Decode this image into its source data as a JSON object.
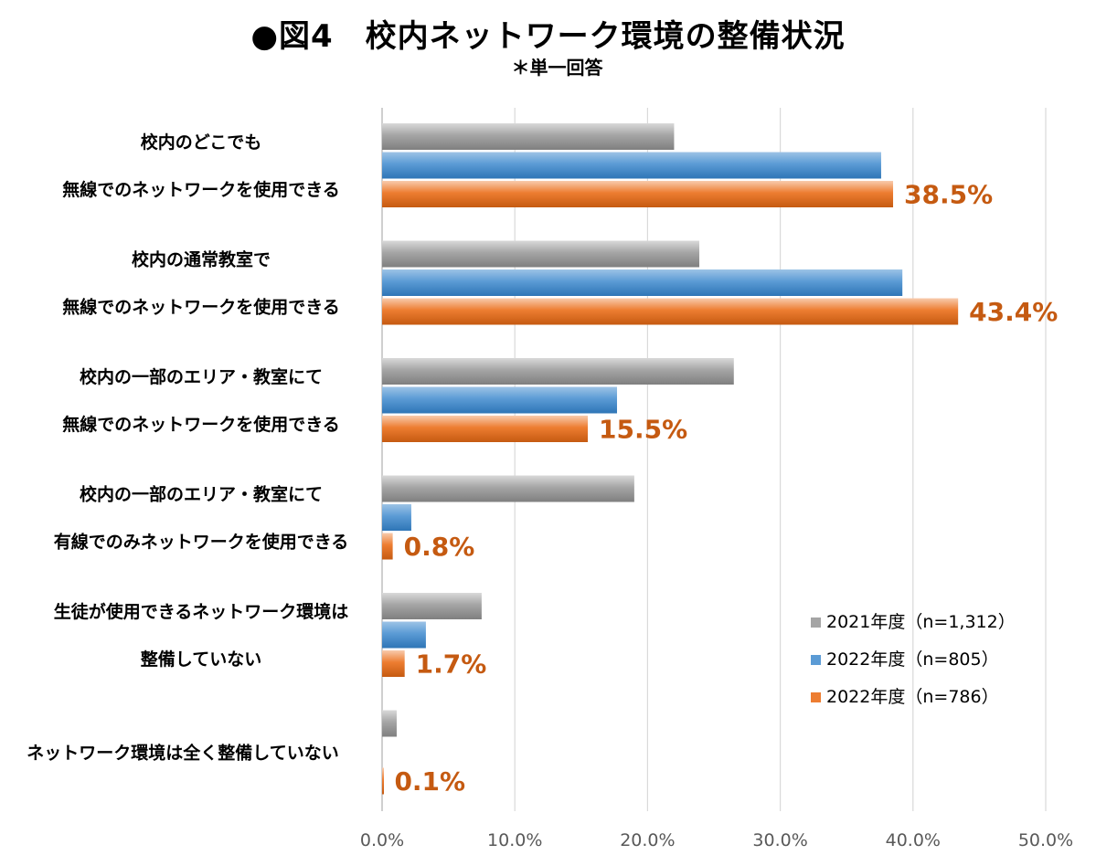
{
  "title": "●図4　校内ネットワーク環境の整備状況",
  "subtitle": "＊単一回答",
  "chart_data": {
    "type": "bar",
    "orientation": "horizontal",
    "categories": [
      [
        "校内のどこでも",
        "無線でのネットワークを使用できる"
      ],
      [
        "校内の通常教室で",
        "無線でのネットワークを使用できる"
      ],
      [
        "校内の一部のエリア・教室にて",
        "無線でのネットワークを使用できる"
      ],
      [
        "校内の一部のエリア・教室にて",
        "有線でのみネットワークを使用できる"
      ],
      [
        "生徒が使用できるネットワーク環境は",
        "整備していない"
      ],
      [
        "ネットワーク環境は全く整備していない"
      ]
    ],
    "series": [
      {
        "name": "2021年度（n=1,312）",
        "color": "#A5A5A5",
        "values": [
          22.0,
          23.9,
          26.5,
          19.0,
          7.5,
          1.1
        ]
      },
      {
        "name": "2022年度（n=805）",
        "color": "#5B9BD5",
        "values": [
          37.6,
          39.2,
          17.7,
          2.2,
          3.3,
          0.0
        ]
      },
      {
        "name": "2022年度（n=786）",
        "color": "#ED7D31",
        "values": [
          38.5,
          43.4,
          15.5,
          0.8,
          1.7,
          0.1
        ]
      }
    ],
    "data_labels": [
      "38.5%",
      "43.4%",
      "15.5%",
      "0.8%",
      "1.7%",
      "0.1%"
    ],
    "x_ticks": [
      "0.0%",
      "10.0%",
      "20.0%",
      "30.0%",
      "40.0%",
      "50.0%"
    ],
    "xlim": [
      0,
      50
    ],
    "grid": true,
    "legend_position": "bottom-right"
  }
}
